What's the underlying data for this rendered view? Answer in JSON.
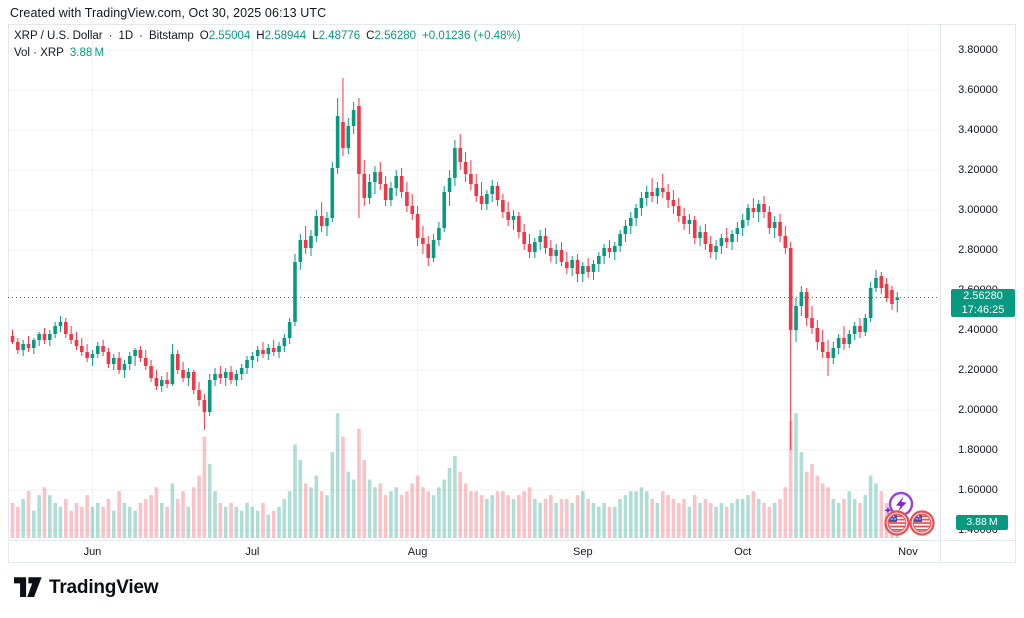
{
  "attribution": "Created with TradingView.com, Oct 30, 2025 06:13 UTC",
  "legend": {
    "symbol": "XRP / U.S. Dollar",
    "dot1": "·",
    "interval": "1D",
    "dot2": "·",
    "exchange": "Bitstamp",
    "o_label": "O",
    "o_value": "2.55004",
    "h_label": "H",
    "h_value": "2.58944",
    "l_label": "L",
    "l_value": "2.48776",
    "c_label": "C",
    "c_value": "2.56280",
    "change": "+0.01236 (+0.48%)",
    "vol_label": "Vol · XRP",
    "vol_value": "3.88 M"
  },
  "price_scale": {
    "labels": [
      "3.80000",
      "3.60000",
      "3.40000",
      "3.20000",
      "3.00000",
      "2.80000",
      "2.60000",
      "2.40000",
      "2.20000",
      "2.00000",
      "1.80000",
      "1.60000",
      "1.40000"
    ],
    "badge": {
      "price": "2.56280",
      "countdown": "17:46:25"
    },
    "volume_badge": "3.88 M"
  },
  "time_scale": {
    "months": [
      {
        "label": "Jun",
        "index": 15
      },
      {
        "label": "Jul",
        "index": 45
      },
      {
        "label": "Aug",
        "index": 76
      },
      {
        "label": "Sep",
        "index": 107
      },
      {
        "label": "Oct",
        "index": 137
      },
      {
        "label": "Nov",
        "index": 168
      }
    ]
  },
  "footer": {
    "brand": "TradingView"
  },
  "icons": {
    "zap": "lightning-event-badge",
    "flags": "us-flag-coin-events",
    "logo": "tradingview-logo-mark"
  },
  "colors": {
    "up": "#089981",
    "down": "#F23645",
    "vol_up": "rgba(8,153,129,0.32)",
    "vol_down": "rgba(242,54,69,0.30)",
    "grid": "#f0f2f7",
    "frame": "#e3e7ee",
    "text": "#131722",
    "badge_bg": "#089981",
    "event_purple": "#9644d9",
    "event_sparkle": "#5b2be0",
    "event_red": "#f04a4f",
    "event_blue": "#3f51b5"
  },
  "chart_data": {
    "type": "candlestick+volume",
    "symbol": "XRP/USD",
    "exchange": "Bitstamp",
    "interval": "1D",
    "title": "XRP / U.S. Dollar · 1D · Bitstamp",
    "price_axis": {
      "min": 1.4,
      "max": 3.8,
      "step": 0.2
    },
    "current_price": 2.5628,
    "current_volume_m": 3.88,
    "volume_unit": "M",
    "candle_format": [
      "open",
      "high",
      "low",
      "close",
      "volume_m"
    ],
    "candles": [
      [
        2.37,
        2.4,
        2.33,
        2.34,
        9
      ],
      [
        2.34,
        2.36,
        2.28,
        2.3,
        8
      ],
      [
        2.3,
        2.35,
        2.27,
        2.33,
        10
      ],
      [
        2.33,
        2.37,
        2.29,
        2.31,
        12
      ],
      [
        2.31,
        2.36,
        2.28,
        2.35,
        7
      ],
      [
        2.35,
        2.39,
        2.32,
        2.38,
        11
      ],
      [
        2.38,
        2.41,
        2.33,
        2.35,
        13
      ],
      [
        2.35,
        2.4,
        2.32,
        2.38,
        11
      ],
      [
        2.38,
        2.44,
        2.36,
        2.42,
        9
      ],
      [
        2.42,
        2.47,
        2.39,
        2.44,
        8
      ],
      [
        2.44,
        2.46,
        2.36,
        2.38,
        10
      ],
      [
        2.38,
        2.42,
        2.33,
        2.35,
        7
      ],
      [
        2.35,
        2.39,
        2.3,
        2.32,
        9
      ],
      [
        2.32,
        2.36,
        2.27,
        2.29,
        8
      ],
      [
        2.29,
        2.33,
        2.24,
        2.26,
        11
      ],
      [
        2.26,
        2.3,
        2.22,
        2.28,
        8
      ],
      [
        2.28,
        2.34,
        2.26,
        2.32,
        9
      ],
      [
        2.32,
        2.35,
        2.27,
        2.29,
        8
      ],
      [
        2.29,
        2.31,
        2.21,
        2.23,
        10
      ],
      [
        2.23,
        2.28,
        2.2,
        2.26,
        7
      ],
      [
        2.26,
        2.29,
        2.18,
        2.2,
        12
      ],
      [
        2.2,
        2.25,
        2.16,
        2.23,
        9
      ],
      [
        2.23,
        2.29,
        2.2,
        2.27,
        8
      ],
      [
        2.27,
        2.31,
        2.22,
        2.3,
        7
      ],
      [
        2.3,
        2.32,
        2.24,
        2.26,
        9
      ],
      [
        2.26,
        2.3,
        2.2,
        2.22,
        10
      ],
      [
        2.22,
        2.25,
        2.14,
        2.16,
        11
      ],
      [
        2.16,
        2.2,
        2.1,
        2.12,
        13
      ],
      [
        2.12,
        2.17,
        2.09,
        2.15,
        9
      ],
      [
        2.15,
        2.19,
        2.11,
        2.13,
        8
      ],
      [
        2.13,
        2.33,
        2.12,
        2.28,
        14
      ],
      [
        2.28,
        2.3,
        2.18,
        2.2,
        10
      ],
      [
        2.2,
        2.24,
        2.14,
        2.16,
        12
      ],
      [
        2.16,
        2.21,
        2.12,
        2.19,
        8
      ],
      [
        2.19,
        2.2,
        2.08,
        2.1,
        13
      ],
      [
        2.1,
        2.14,
        2.02,
        2.05,
        16
      ],
      [
        2.05,
        2.08,
        1.9,
        1.99,
        26
      ],
      [
        1.99,
        2.18,
        1.97,
        2.15,
        19
      ],
      [
        2.15,
        2.21,
        2.12,
        2.18,
        12
      ],
      [
        2.18,
        2.22,
        2.13,
        2.16,
        9
      ],
      [
        2.16,
        2.21,
        2.12,
        2.19,
        8
      ],
      [
        2.19,
        2.22,
        2.13,
        2.15,
        9
      ],
      [
        2.15,
        2.2,
        2.12,
        2.18,
        8
      ],
      [
        2.18,
        2.23,
        2.15,
        2.21,
        7
      ],
      [
        2.21,
        2.27,
        2.18,
        2.25,
        9
      ],
      [
        2.25,
        2.29,
        2.21,
        2.27,
        8
      ],
      [
        2.27,
        2.32,
        2.24,
        2.3,
        7
      ],
      [
        2.3,
        2.34,
        2.26,
        2.28,
        9
      ],
      [
        2.28,
        2.33,
        2.25,
        2.31,
        6
      ],
      [
        2.31,
        2.35,
        2.27,
        2.29,
        7
      ],
      [
        2.29,
        2.34,
        2.26,
        2.32,
        8
      ],
      [
        2.32,
        2.38,
        2.29,
        2.36,
        10
      ],
      [
        2.36,
        2.46,
        2.33,
        2.44,
        12
      ],
      [
        2.44,
        2.78,
        2.42,
        2.74,
        24
      ],
      [
        2.74,
        2.88,
        2.7,
        2.85,
        20
      ],
      [
        2.85,
        2.92,
        2.78,
        2.81,
        14
      ],
      [
        2.81,
        2.9,
        2.77,
        2.87,
        13
      ],
      [
        2.87,
        3.0,
        2.84,
        2.97,
        16
      ],
      [
        2.97,
        3.04,
        2.89,
        2.92,
        12
      ],
      [
        2.92,
        2.99,
        2.87,
        2.96,
        11
      ],
      [
        2.96,
        3.24,
        2.94,
        3.21,
        22
      ],
      [
        3.21,
        3.56,
        3.18,
        3.47,
        32
      ],
      [
        3.44,
        3.66,
        3.27,
        3.31,
        26
      ],
      [
        3.31,
        3.46,
        3.28,
        3.42,
        17
      ],
      [
        3.42,
        3.54,
        3.38,
        3.5,
        15
      ],
      [
        3.52,
        3.56,
        2.96,
        3.18,
        28
      ],
      [
        3.18,
        3.25,
        3.02,
        3.06,
        20
      ],
      [
        3.06,
        3.18,
        3.03,
        3.14,
        15
      ],
      [
        3.14,
        3.22,
        3.08,
        3.19,
        13
      ],
      [
        3.19,
        3.24,
        3.1,
        3.13,
        14
      ],
      [
        3.13,
        3.17,
        3.02,
        3.05,
        11
      ],
      [
        3.05,
        3.14,
        3.02,
        3.11,
        12
      ],
      [
        3.11,
        3.2,
        3.07,
        3.17,
        13
      ],
      [
        3.17,
        3.21,
        3.06,
        3.09,
        11
      ],
      [
        3.09,
        3.14,
        2.99,
        3.02,
        12
      ],
      [
        3.02,
        3.08,
        2.95,
        2.98,
        14
      ],
      [
        2.98,
        3.02,
        2.82,
        2.86,
        16
      ],
      [
        2.86,
        2.92,
        2.78,
        2.83,
        13
      ],
      [
        2.83,
        2.87,
        2.72,
        2.76,
        12
      ],
      [
        2.76,
        2.88,
        2.74,
        2.85,
        11
      ],
      [
        2.85,
        2.94,
        2.82,
        2.91,
        13
      ],
      [
        2.91,
        3.12,
        2.89,
        3.09,
        15
      ],
      [
        3.09,
        3.2,
        3.02,
        3.16,
        18
      ],
      [
        3.16,
        3.35,
        3.12,
        3.31,
        21
      ],
      [
        3.31,
        3.38,
        3.2,
        3.24,
        17
      ],
      [
        3.24,
        3.29,
        3.14,
        3.18,
        14
      ],
      [
        3.18,
        3.25,
        3.1,
        3.13,
        12
      ],
      [
        3.13,
        3.18,
        3.04,
        3.07,
        12
      ],
      [
        3.07,
        3.14,
        3.0,
        3.03,
        11
      ],
      [
        3.03,
        3.1,
        3.0,
        3.08,
        10
      ],
      [
        3.08,
        3.15,
        3.04,
        3.12,
        11
      ],
      [
        3.12,
        3.14,
        3.02,
        3.05,
        12
      ],
      [
        3.05,
        3.08,
        2.96,
        2.99,
        12
      ],
      [
        2.99,
        3.04,
        2.92,
        2.95,
        11
      ],
      [
        2.95,
        3.0,
        2.9,
        2.97,
        10
      ],
      [
        2.97,
        2.99,
        2.86,
        2.89,
        11
      ],
      [
        2.89,
        2.93,
        2.8,
        2.83,
        12
      ],
      [
        2.83,
        2.88,
        2.76,
        2.79,
        13
      ],
      [
        2.79,
        2.86,
        2.76,
        2.84,
        10
      ],
      [
        2.84,
        2.9,
        2.8,
        2.87,
        9
      ],
      [
        2.87,
        2.91,
        2.78,
        2.81,
        10
      ],
      [
        2.81,
        2.85,
        2.74,
        2.77,
        11
      ],
      [
        2.77,
        2.83,
        2.73,
        2.8,
        9
      ],
      [
        2.8,
        2.84,
        2.72,
        2.74,
        10
      ],
      [
        2.74,
        2.79,
        2.68,
        2.71,
        10
      ],
      [
        2.71,
        2.77,
        2.67,
        2.75,
        9
      ],
      [
        2.75,
        2.78,
        2.64,
        2.68,
        11
      ],
      [
        2.68,
        2.74,
        2.64,
        2.72,
        12
      ],
      [
        2.72,
        2.76,
        2.66,
        2.69,
        10
      ],
      [
        2.69,
        2.75,
        2.65,
        2.73,
        9
      ],
      [
        2.73,
        2.79,
        2.69,
        2.77,
        8
      ],
      [
        2.77,
        2.83,
        2.73,
        2.81,
        9
      ],
      [
        2.81,
        2.85,
        2.76,
        2.79,
        8
      ],
      [
        2.79,
        2.84,
        2.75,
        2.82,
        8
      ],
      [
        2.82,
        2.9,
        2.79,
        2.88,
        10
      ],
      [
        2.88,
        2.95,
        2.84,
        2.92,
        11
      ],
      [
        2.92,
        2.99,
        2.88,
        2.96,
        12
      ],
      [
        2.96,
        3.03,
        2.92,
        3.01,
        12
      ],
      [
        3.01,
        3.09,
        2.97,
        3.06,
        13
      ],
      [
        3.06,
        3.12,
        3.02,
        3.09,
        12
      ],
      [
        3.09,
        3.16,
        3.04,
        3.07,
        10
      ],
      [
        3.07,
        3.14,
        3.03,
        3.11,
        9
      ],
      [
        3.11,
        3.18,
        3.06,
        3.09,
        12
      ],
      [
        3.09,
        3.13,
        3.01,
        3.05,
        11
      ],
      [
        3.05,
        3.1,
        2.98,
        3.02,
        10
      ],
      [
        3.02,
        3.06,
        2.94,
        2.97,
        9
      ],
      [
        2.97,
        3.01,
        2.9,
        2.93,
        10
      ],
      [
        2.93,
        2.98,
        2.88,
        2.95,
        8
      ],
      [
        2.95,
        2.97,
        2.83,
        2.86,
        11
      ],
      [
        2.86,
        2.92,
        2.82,
        2.89,
        9
      ],
      [
        2.89,
        2.93,
        2.8,
        2.83,
        10
      ],
      [
        2.83,
        2.87,
        2.76,
        2.79,
        9
      ],
      [
        2.79,
        2.85,
        2.75,
        2.82,
        8
      ],
      [
        2.82,
        2.88,
        2.78,
        2.86,
        9
      ],
      [
        2.86,
        2.91,
        2.81,
        2.84,
        8
      ],
      [
        2.84,
        2.9,
        2.8,
        2.88,
        9
      ],
      [
        2.88,
        2.94,
        2.84,
        2.91,
        10
      ],
      [
        2.91,
        2.98,
        2.87,
        2.95,
        10
      ],
      [
        2.95,
        3.03,
        2.92,
        3.01,
        11
      ],
      [
        3.01,
        3.06,
        2.96,
        2.99,
        12
      ],
      [
        2.99,
        3.05,
        2.94,
        3.03,
        10
      ],
      [
        3.03,
        3.07,
        2.96,
        2.99,
        9
      ],
      [
        2.99,
        3.02,
        2.88,
        2.91,
        8
      ],
      [
        2.91,
        2.97,
        2.86,
        2.94,
        9
      ],
      [
        2.94,
        2.98,
        2.84,
        2.87,
        10
      ],
      [
        2.87,
        2.92,
        2.78,
        2.81,
        13
      ],
      [
        2.81,
        2.84,
        1.8,
        2.4,
        30
      ],
      [
        2.4,
        2.56,
        2.34,
        2.52,
        32
      ],
      [
        2.52,
        2.62,
        2.47,
        2.59,
        22
      ],
      [
        2.59,
        2.61,
        2.42,
        2.46,
        17
      ],
      [
        2.46,
        2.52,
        2.38,
        2.41,
        19
      ],
      [
        2.41,
        2.45,
        2.3,
        2.34,
        16
      ],
      [
        2.34,
        2.4,
        2.26,
        2.29,
        14
      ],
      [
        2.29,
        2.35,
        2.17,
        2.26,
        13
      ],
      [
        2.26,
        2.34,
        2.23,
        2.31,
        10
      ],
      [
        2.31,
        2.38,
        2.28,
        2.36,
        9
      ],
      [
        2.36,
        2.42,
        2.3,
        2.33,
        10
      ],
      [
        2.33,
        2.4,
        2.31,
        2.38,
        12
      ],
      [
        2.38,
        2.44,
        2.35,
        2.42,
        10
      ],
      [
        2.42,
        2.46,
        2.36,
        2.39,
        9
      ],
      [
        2.39,
        2.48,
        2.37,
        2.46,
        11
      ],
      [
        2.46,
        2.64,
        2.44,
        2.61,
        16
      ],
      [
        2.61,
        2.7,
        2.59,
        2.66,
        14
      ],
      [
        2.67,
        2.69,
        2.58,
        2.61,
        12
      ],
      [
        2.63,
        2.66,
        2.54,
        2.56,
        9
      ],
      [
        2.6,
        2.62,
        2.5,
        2.53,
        8
      ],
      [
        2.55004,
        2.58944,
        2.48776,
        2.5628,
        3.88
      ]
    ]
  }
}
